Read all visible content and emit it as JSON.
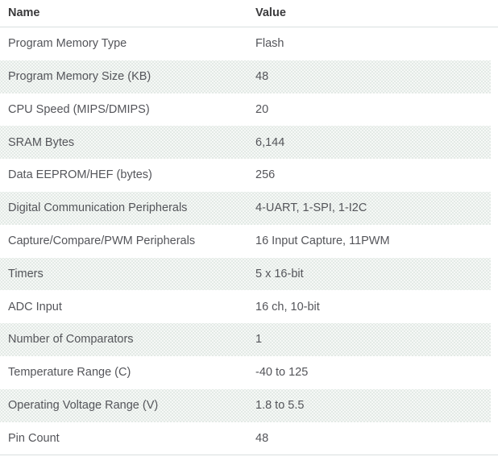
{
  "theme": {
    "header_text_color": "#3a3a3c",
    "body_text_color": "#54555a",
    "border_color": "#d9dfdf",
    "stripe_color": "#eef1ee"
  },
  "table": {
    "columns": [
      {
        "label": "Name"
      },
      {
        "label": "Value"
      }
    ],
    "rows": [
      {
        "name": "Program Memory Type",
        "value": "Flash"
      },
      {
        "name": "Program Memory Size (KB)",
        "value": "48"
      },
      {
        "name": "CPU Speed (MIPS/DMIPS)",
        "value": "20"
      },
      {
        "name": "SRAM Bytes",
        "value": "6,144"
      },
      {
        "name": "Data EEPROM/HEF (bytes)",
        "value": "256"
      },
      {
        "name": "Digital Communication Peripherals",
        "value": "4-UART, 1-SPI, 1-I2C"
      },
      {
        "name": "Capture/Compare/PWM Peripherals",
        "value": "16 Input Capture, 11PWM"
      },
      {
        "name": "Timers",
        "value": "5 x 16-bit"
      },
      {
        "name": "ADC Input",
        "value": "16 ch, 10-bit"
      },
      {
        "name": "Number of Comparators",
        "value": "1"
      },
      {
        "name": "Temperature Range (C)",
        "value": "-40 to 125"
      },
      {
        "name": "Operating Voltage Range (V)",
        "value": "1.8 to 5.5"
      },
      {
        "name": "Pin Count",
        "value": "48"
      }
    ]
  }
}
